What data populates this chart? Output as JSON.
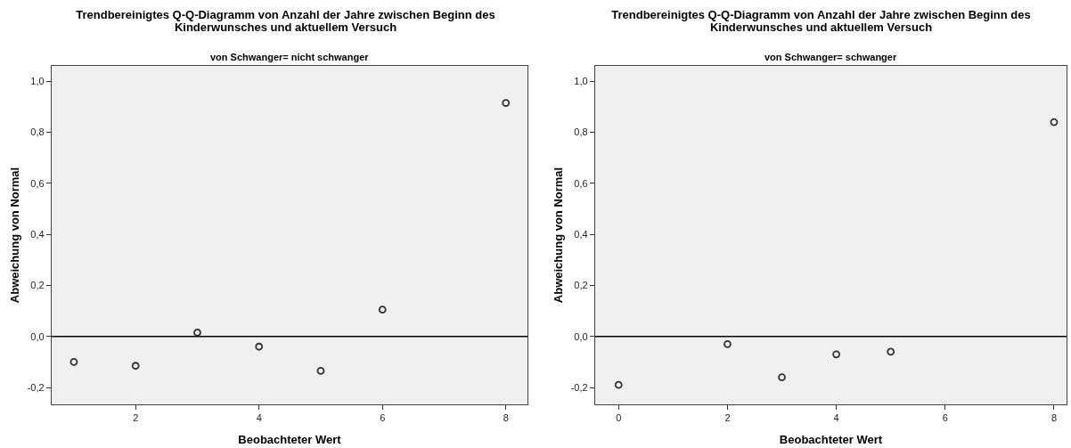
{
  "chart_data": [
    {
      "type": "scatter",
      "title": "Trendbereinigtes Q-Q-Diagramm von Anzahl der Jahre zwischen Beginn des Kinderwunsches und aktuellem Versuch",
      "subtitle": "von Schwanger= nicht schwanger",
      "xlabel": "Beobachteter Wert",
      "ylabel": "Abweichung von Normal",
      "x": [
        1,
        2,
        3,
        4,
        5,
        6,
        8
      ],
      "values": [
        -0.1,
        -0.115,
        0.015,
        -0.04,
        -0.135,
        0.105,
        0.915
      ],
      "color": "#333333",
      "marker": "circle",
      "xlim": [
        0.64,
        8.35
      ],
      "xticks": [
        2,
        4,
        6,
        8
      ],
      "ylim": [
        -0.266,
        1.06
      ],
      "yticks": [
        {
          "value": -0.2,
          "label": "-0,2"
        },
        {
          "value": 0,
          "label": "0,0"
        },
        {
          "value": 0.2,
          "label": "0,2"
        },
        {
          "value": 0.4,
          "label": "0,4"
        },
        {
          "value": 0.6,
          "label": "0,6"
        },
        {
          "value": 0.8,
          "label": "0,8"
        },
        {
          "value": 1,
          "label": "1,0"
        }
      ],
      "grid": false,
      "legend": false,
      "ref_lines": [
        {
          "axis": "y",
          "value": 0,
          "color": "#000000"
        }
      ]
    },
    {
      "type": "scatter",
      "title": "Trendbereinigtes Q-Q-Diagramm von Anzahl der Jahre zwischen Beginn des Kinderwunsches und aktuellem Versuch",
      "subtitle": "von Schwanger= schwanger",
      "xlabel": "Beobachteter Wert",
      "ylabel": "Abweichung von Normal",
      "x": [
        0,
        2,
        3,
        4,
        5,
        8
      ],
      "values": [
        -0.19,
        -0.03,
        -0.16,
        -0.07,
        -0.06,
        0.84
      ],
      "color": "#333333",
      "marker": "circle",
      "xlim": [
        -0.43,
        8.23
      ],
      "xticks": [
        0,
        2,
        4,
        6,
        8
      ],
      "ylim": [
        -0.266,
        1.06
      ],
      "yticks": [
        {
          "value": -0.2,
          "label": "-0,2"
        },
        {
          "value": 0,
          "label": "0,0"
        },
        {
          "value": 0.2,
          "label": "0,2"
        },
        {
          "value": 0.4,
          "label": "0,4"
        },
        {
          "value": 0.6,
          "label": "0,6"
        },
        {
          "value": 0.8,
          "label": "0,8"
        },
        {
          "value": 1,
          "label": "1,0"
        }
      ],
      "grid": false,
      "legend": false,
      "ref_lines": [
        {
          "axis": "y",
          "value": 0,
          "color": "#000000"
        }
      ]
    }
  ]
}
